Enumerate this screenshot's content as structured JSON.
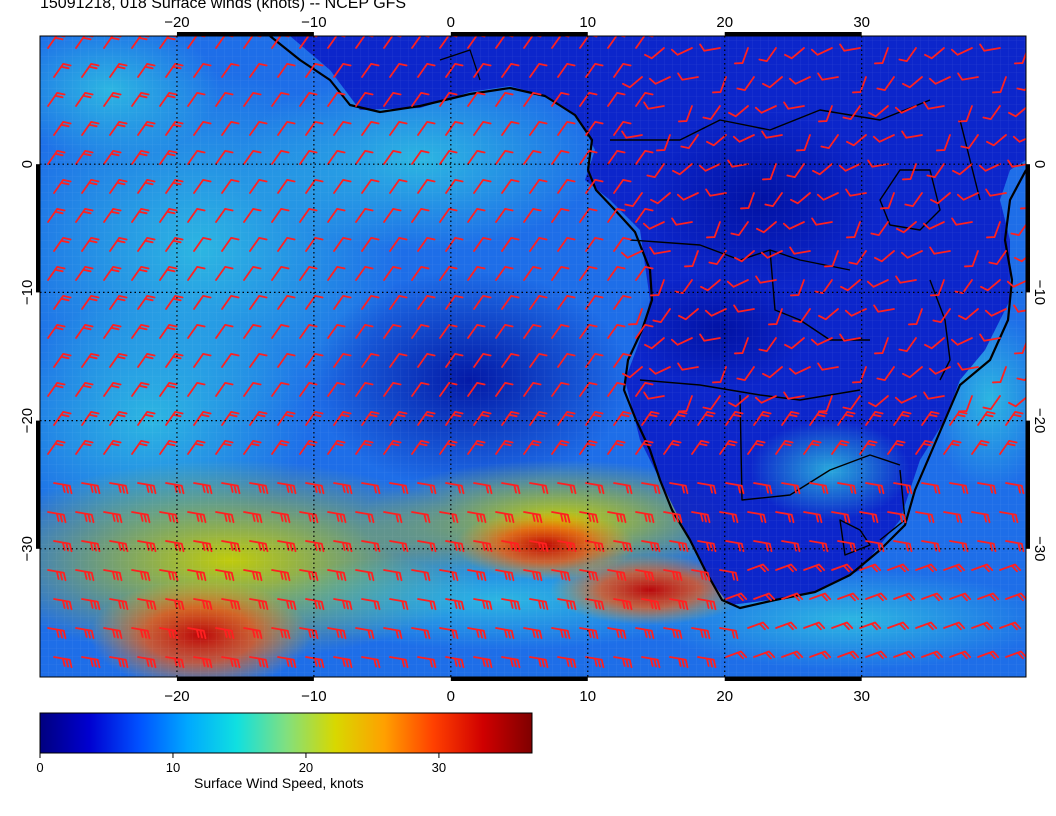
{
  "title": "15091218, 018 Surface winds (knots) -- NCEP GFS",
  "map": {
    "lon_range": [
      -30,
      42
    ],
    "lat_range": [
      -40,
      10
    ],
    "lon_ticks": [
      {
        "value": -20,
        "label": "−20"
      },
      {
        "value": -10,
        "label": "−10"
      },
      {
        "value": 0,
        "label": "0"
      },
      {
        "value": 10,
        "label": "10"
      },
      {
        "value": 20,
        "label": "20"
      },
      {
        "value": 30,
        "label": "30"
      }
    ],
    "lat_ticks": [
      {
        "value": 0,
        "label": "0"
      },
      {
        "value": -10,
        "label": "−10"
      },
      {
        "value": -20,
        "label": "−20"
      },
      {
        "value": -30,
        "label": "−30"
      }
    ],
    "grid": true,
    "barb_color": "#ff2020",
    "coast_color": "#000000"
  },
  "colorbar": {
    "title": "Surface Wind Speed, knots",
    "range": [
      0,
      37
    ],
    "ticks": [
      {
        "value": 0,
        "label": "0"
      },
      {
        "value": 10,
        "label": "10"
      },
      {
        "value": 20,
        "label": "20"
      },
      {
        "value": 30,
        "label": "30"
      }
    ],
    "colors": [
      "#00007f",
      "#0000d0",
      "#0050ff",
      "#00a8ff",
      "#10e0e0",
      "#80e080",
      "#d8d800",
      "#ffa000",
      "#ff4000",
      "#d00000",
      "#7f0000"
    ]
  }
}
